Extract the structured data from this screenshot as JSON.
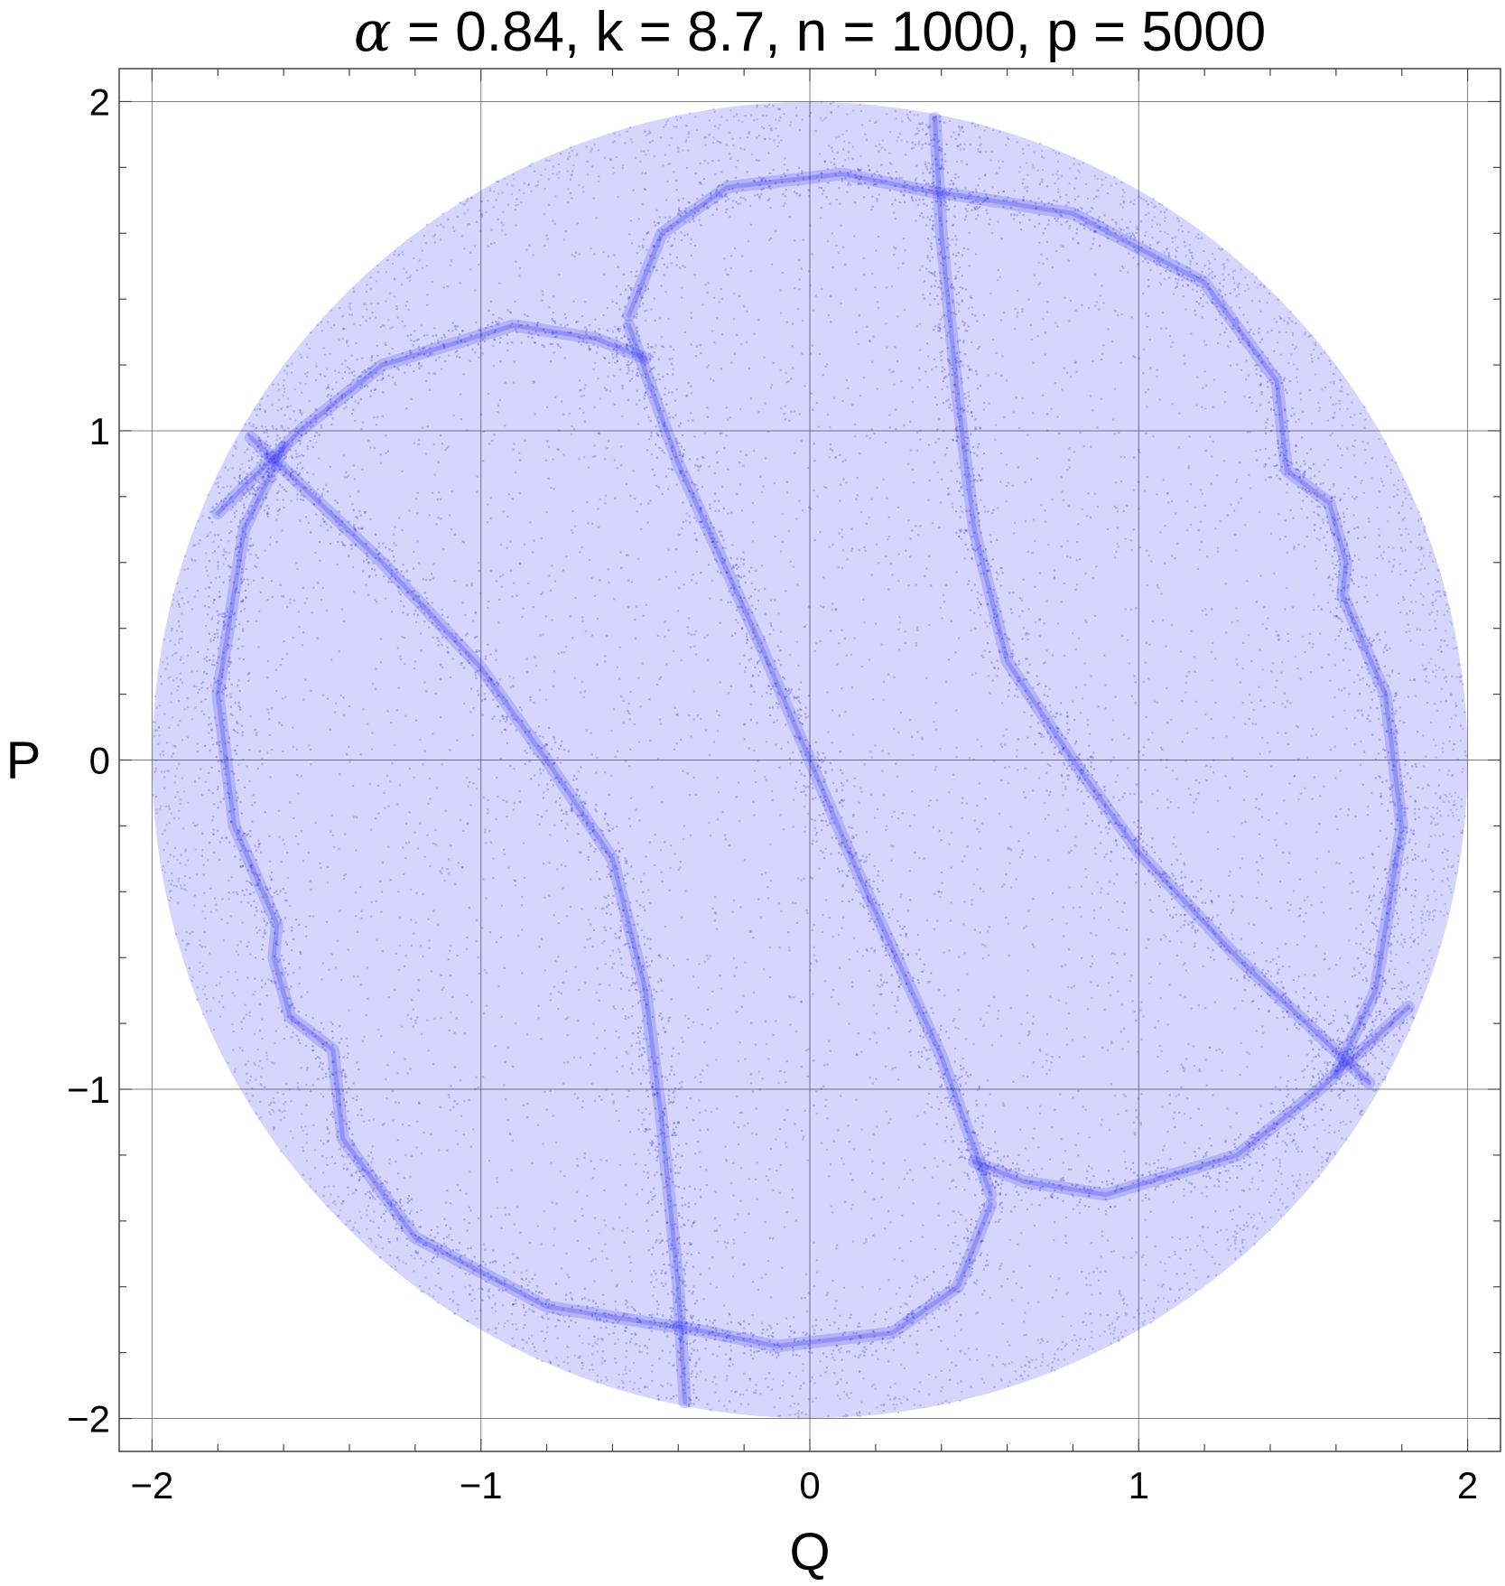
{
  "chart_data": {
    "type": "scatter",
    "title": {
      "alpha_symbol": "α",
      "rest": " = 0.84, k = 8.7, n = 1000, p = 5000"
    },
    "xlabel": "Q",
    "ylabel": "P",
    "xlim": [
      -2.1,
      2.1
    ],
    "ylim": [
      -2.1,
      2.1
    ],
    "x_ticks": [
      {
        "value": -2,
        "label": "−2"
      },
      {
        "value": -1,
        "label": "−1"
      },
      {
        "value": 0,
        "label": "0"
      },
      {
        "value": 1,
        "label": "1"
      },
      {
        "value": 2,
        "label": "2"
      }
    ],
    "y_ticks": [
      {
        "value": 2,
        "label": "2"
      },
      {
        "value": 1,
        "label": "1"
      },
      {
        "value": 0,
        "label": "0"
      },
      {
        "value": -1,
        "label": "−1"
      },
      {
        "value": -2,
        "label": "−2"
      }
    ],
    "grid": true,
    "legend": "none",
    "point_color": "#1e1ef0",
    "point_cloud": {
      "shape": "disk",
      "center": [
        0,
        0
      ],
      "radius": 2.0
    },
    "dense_curves": [
      {
        "name": "central-diagonal",
        "points": [
          [
            -0.55,
            1.32
          ],
          [
            -0.4,
            0.9
          ],
          [
            -0.15,
            0.35
          ],
          [
            0.0,
            0.0
          ],
          [
            0.15,
            -0.35
          ],
          [
            0.4,
            -0.9
          ],
          [
            0.55,
            -1.32
          ]
        ]
      },
      {
        "name": "left-curve",
        "points": [
          [
            -1.7,
            0.98
          ],
          [
            -1.3,
            0.6
          ],
          [
            -1.0,
            0.28
          ],
          [
            -0.8,
            0.0
          ],
          [
            -0.6,
            -0.3
          ],
          [
            -0.5,
            -0.7
          ],
          [
            -0.45,
            -1.1
          ],
          [
            -0.4,
            -1.6
          ],
          [
            -0.38,
            -1.95
          ]
        ]
      },
      {
        "name": "right-curve",
        "points": [
          [
            1.7,
            -0.98
          ],
          [
            1.3,
            -0.6
          ],
          [
            1.0,
            -0.28
          ],
          [
            0.8,
            0.0
          ],
          [
            0.6,
            0.3
          ],
          [
            0.5,
            0.7
          ],
          [
            0.45,
            1.1
          ],
          [
            0.4,
            1.6
          ],
          [
            0.38,
            1.95
          ]
        ]
      },
      {
        "name": "upper-left-arc",
        "points": [
          [
            -1.8,
            0.75
          ],
          [
            -1.55,
            1.0
          ],
          [
            -1.3,
            1.2
          ],
          [
            -0.9,
            1.32
          ],
          [
            -0.65,
            1.28
          ],
          [
            -0.5,
            1.22
          ]
        ]
      },
      {
        "name": "upper-arc",
        "points": [
          [
            -0.55,
            1.35
          ],
          [
            -0.45,
            1.6
          ],
          [
            -0.25,
            1.74
          ],
          [
            0.1,
            1.78
          ],
          [
            0.4,
            1.72
          ]
        ]
      },
      {
        "name": "upper-right-arc",
        "points": [
          [
            0.42,
            1.72
          ],
          [
            0.8,
            1.66
          ],
          [
            1.2,
            1.45
          ],
          [
            1.42,
            1.15
          ],
          [
            1.45,
            0.88
          ],
          [
            1.58,
            0.78
          ],
          [
            1.63,
            0.6
          ],
          [
            1.62,
            0.5
          ],
          [
            1.75,
            0.2
          ],
          [
            1.8,
            -0.2
          ],
          [
            1.72,
            -0.7
          ],
          [
            1.6,
            -0.95
          ]
        ]
      },
      {
        "name": "lower-right-arc",
        "points": [
          [
            1.82,
            -0.75
          ],
          [
            1.55,
            -1.0
          ],
          [
            1.3,
            -1.2
          ],
          [
            0.9,
            -1.32
          ],
          [
            0.65,
            -1.28
          ],
          [
            0.5,
            -1.22
          ]
        ]
      },
      {
        "name": "lower-arc",
        "points": [
          [
            0.55,
            -1.35
          ],
          [
            0.45,
            -1.6
          ],
          [
            0.25,
            -1.74
          ],
          [
            -0.1,
            -1.78
          ],
          [
            -0.4,
            -1.72
          ]
        ]
      },
      {
        "name": "lower-left-arc",
        "points": [
          [
            -0.42,
            -1.72
          ],
          [
            -0.8,
            -1.66
          ],
          [
            -1.2,
            -1.45
          ],
          [
            -1.42,
            -1.15
          ],
          [
            -1.45,
            -0.88
          ],
          [
            -1.58,
            -0.78
          ],
          [
            -1.63,
            -0.6
          ],
          [
            -1.62,
            -0.5
          ],
          [
            -1.75,
            -0.2
          ],
          [
            -1.8,
            0.2
          ],
          [
            -1.72,
            0.7
          ],
          [
            -1.6,
            0.95
          ]
        ]
      }
    ]
  }
}
